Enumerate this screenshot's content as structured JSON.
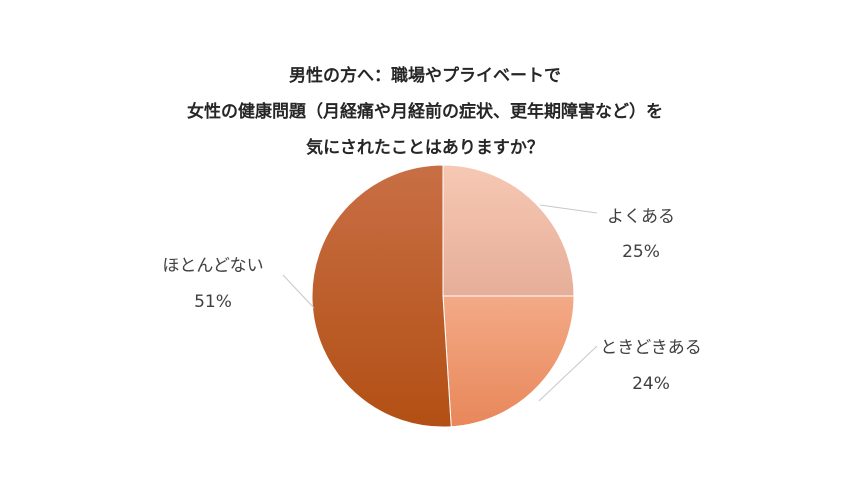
{
  "chart_data": {
    "type": "pie",
    "title_lines": [
      "男性の方へ：職場やプライベートで",
      "女性の健康問題（月経痛や月経前の症状、更年期障害など）を",
      "気にされたことはありますか？"
    ],
    "slices": [
      {
        "label": "よくある",
        "value": 25,
        "value_label": "25%",
        "colors": [
          "#f6c8b4",
          "#e6ae98"
        ]
      },
      {
        "label": "ときどきある",
        "value": 24,
        "value_label": "24%",
        "colors": [
          "#f3aa86",
          "#e8875a"
        ]
      },
      {
        "label": "ほとんどない",
        "value": 51,
        "value_label": "51%",
        "colors": [
          "#c86f45",
          "#b24f14"
        ]
      }
    ],
    "start_angle_deg": 0,
    "direction": "clockwise",
    "legend": "none"
  }
}
